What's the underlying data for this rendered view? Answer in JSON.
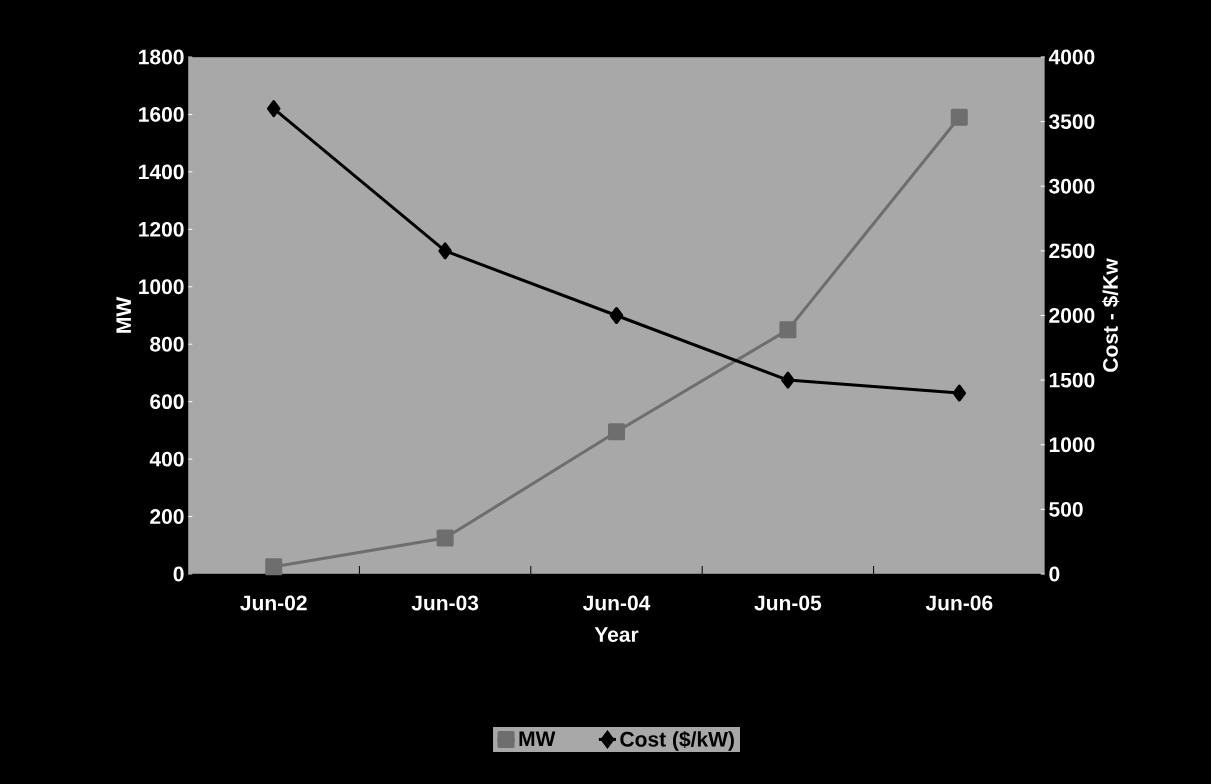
{
  "chart_data": {
    "type": "line",
    "xlabel": "Year",
    "ylabel": "MW",
    "y2label": "Cost - $/Kw",
    "categories": [
      "Jun-02",
      "Jun-03",
      "Jun-04",
      "Jun-05",
      "Jun-06"
    ],
    "series": [
      {
        "name": "MW",
        "color": "#6e6e6e",
        "marker": "square",
        "values": [
          25,
          125,
          495,
          850,
          1590
        ]
      },
      {
        "name": "Cost ($/kW)",
        "color": "#000000",
        "marker": "diamond",
        "axis": "y2",
        "values": [
          3600,
          2500,
          2000,
          1500,
          1400
        ]
      }
    ],
    "ylim": [
      0,
      1800
    ],
    "yticks": [
      0,
      200,
      400,
      600,
      800,
      1000,
      1200,
      1400,
      1600,
      1800
    ],
    "y2lim": [
      0,
      4000
    ],
    "y2ticks": [
      0,
      500,
      1000,
      1500,
      2000,
      2500,
      3000,
      3500,
      4000
    ],
    "grid": false,
    "legend": "bottom"
  }
}
